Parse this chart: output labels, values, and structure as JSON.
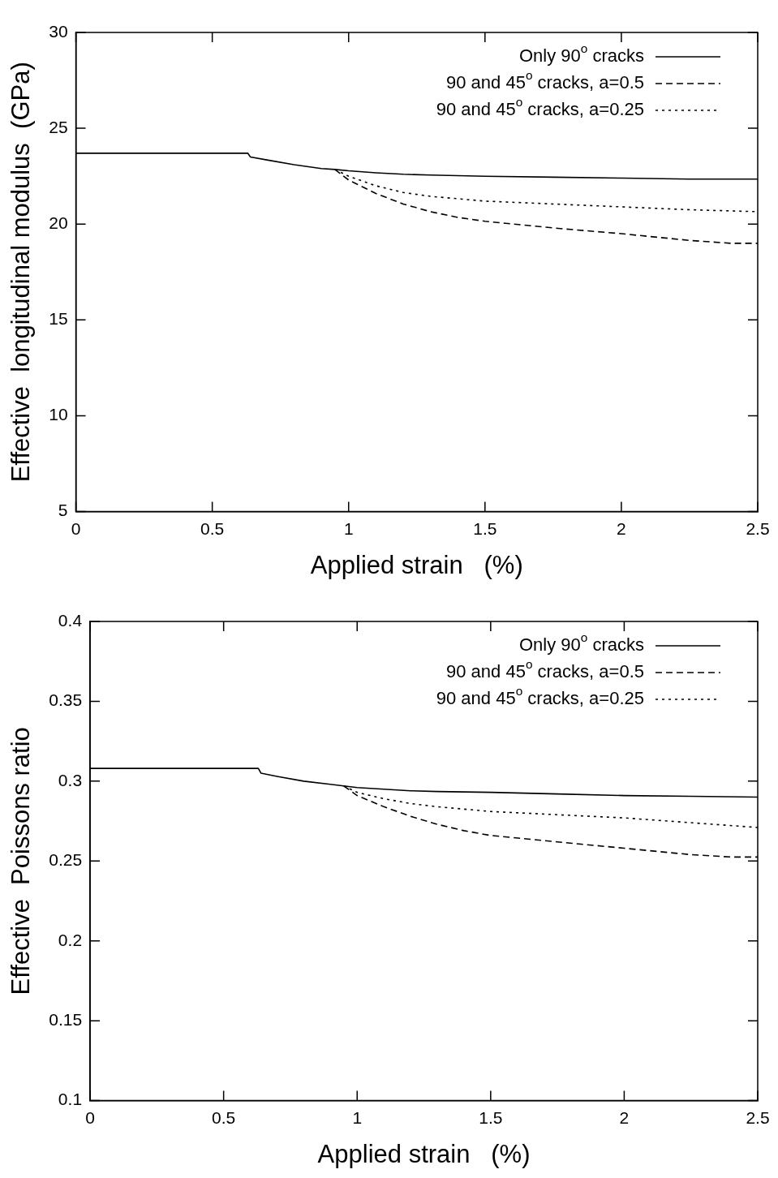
{
  "chart_data": [
    {
      "type": "line",
      "xlabel": "Applied strain   (%)",
      "ylabel": "Effective  longitudinal modulus  (GPa)",
      "xlim": [
        0,
        2.5
      ],
      "xticks": [
        0,
        0.5,
        1,
        1.5,
        2,
        2.5
      ],
      "ylim": [
        5,
        30
      ],
      "yticks": [
        5,
        10,
        15,
        20,
        25,
        30
      ],
      "grid": false,
      "legend": "top right",
      "marker": "none",
      "series": [
        {
          "name": "Only 90$^{o}$ cracks",
          "color": "#000000",
          "line_style": "solid",
          "x": [
            0,
            0.63,
            0.64,
            0.7,
            0.8,
            0.9,
            0.95,
            1.0,
            1.1,
            1.2,
            1.3,
            1.5,
            1.75,
            2.0,
            2.25,
            2.5
          ],
          "values": [
            23.7,
            23.7,
            23.5,
            23.35,
            23.1,
            22.9,
            22.85,
            22.78,
            22.68,
            22.6,
            22.56,
            22.5,
            22.45,
            22.4,
            22.35,
            22.35
          ]
        },
        {
          "name": "90 and 45$^{o}$ cracks, a=0.5",
          "color": "#000000",
          "line_style": "dashed",
          "x": [
            0.95,
            1.0,
            1.1,
            1.2,
            1.3,
            1.4,
            1.5,
            1.75,
            2.0,
            2.25,
            2.4,
            2.5
          ],
          "values": [
            22.85,
            22.3,
            21.6,
            21.05,
            20.65,
            20.35,
            20.15,
            19.8,
            19.5,
            19.15,
            19.0,
            19.0
          ]
        },
        {
          "name": "90 and 45$^{o}$ cracks, a=0.25",
          "color": "#000000",
          "line_style": "dotted",
          "x": [
            0.95,
            1.0,
            1.1,
            1.2,
            1.3,
            1.5,
            1.75,
            2.0,
            2.25,
            2.5
          ],
          "values": [
            22.85,
            22.5,
            22.0,
            21.65,
            21.45,
            21.2,
            21.05,
            20.9,
            20.75,
            20.65
          ]
        }
      ]
    },
    {
      "type": "line",
      "xlabel": "Applied strain   (%)",
      "ylabel": "Effective  Poissons ratio",
      "xlim": [
        0,
        2.5
      ],
      "xticks": [
        0,
        0.5,
        1,
        1.5,
        2,
        2.5
      ],
      "ylim": [
        0.1,
        0.4
      ],
      "yticks": [
        0.1,
        0.15,
        0.2,
        0.25,
        0.3,
        0.35,
        0.4
      ],
      "grid": false,
      "legend": "top right",
      "marker": "none",
      "series": [
        {
          "name": "Only 90$^{o}$ cracks",
          "color": "#000000",
          "line_style": "solid",
          "x": [
            0,
            0.63,
            0.64,
            0.7,
            0.8,
            0.9,
            0.95,
            1.0,
            1.1,
            1.2,
            1.3,
            1.5,
            1.75,
            2.0,
            2.25,
            2.5
          ],
          "values": [
            0.308,
            0.308,
            0.305,
            0.303,
            0.3,
            0.298,
            0.297,
            0.296,
            0.295,
            0.294,
            0.2935,
            0.293,
            0.292,
            0.291,
            0.2905,
            0.29
          ]
        },
        {
          "name": "90 and 45$^{o}$ cracks, a=0.5",
          "color": "#000000",
          "line_style": "dashed",
          "x": [
            0.95,
            1.0,
            1.1,
            1.2,
            1.3,
            1.4,
            1.5,
            1.75,
            2.0,
            2.25,
            2.4,
            2.5
          ],
          "values": [
            0.297,
            0.291,
            0.284,
            0.278,
            0.273,
            0.269,
            0.266,
            0.262,
            0.258,
            0.254,
            0.2525,
            0.2525
          ]
        },
        {
          "name": "90 and 45$^{o}$ cracks, a=0.25",
          "color": "#000000",
          "line_style": "dotted",
          "x": [
            0.95,
            1.0,
            1.1,
            1.2,
            1.3,
            1.5,
            1.75,
            2.0,
            2.25,
            2.5
          ],
          "values": [
            0.297,
            0.293,
            0.289,
            0.286,
            0.284,
            0.281,
            0.279,
            0.277,
            0.274,
            0.271
          ]
        }
      ]
    }
  ]
}
